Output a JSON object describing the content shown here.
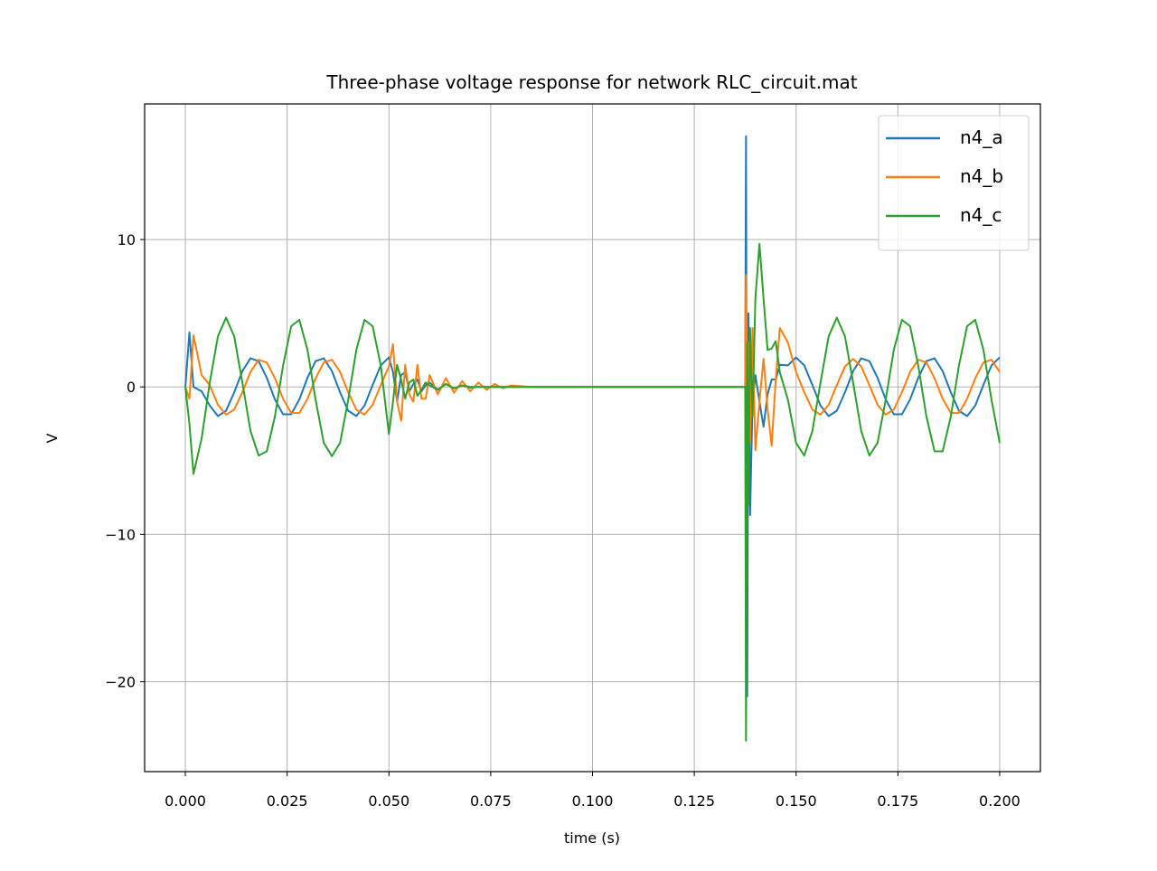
{
  "chart_data": {
    "type": "line",
    "title": "Three-phase voltage response for network RLC_circuit.mat",
    "xlabel": "time (s)",
    "ylabel": "V",
    "x": [
      0.0,
      0.001,
      0.002,
      0.004,
      0.006,
      0.008,
      0.01,
      0.012,
      0.014,
      0.016,
      0.018,
      0.02,
      0.022,
      0.024,
      0.026,
      0.028,
      0.03,
      0.032,
      0.034,
      0.036,
      0.038,
      0.04,
      0.042,
      0.044,
      0.046,
      0.048,
      0.05,
      0.051,
      0.052,
      0.053,
      0.054,
      0.055,
      0.056,
      0.057,
      0.058,
      0.059,
      0.06,
      0.062,
      0.064,
      0.066,
      0.068,
      0.07,
      0.072,
      0.074,
      0.076,
      0.078,
      0.08,
      0.085,
      0.1375,
      0.1377,
      0.138,
      0.1383,
      0.1387,
      0.1393,
      0.14,
      0.141,
      0.142,
      0.143,
      0.144,
      0.145,
      0.146,
      0.148,
      0.15,
      0.152,
      0.154,
      0.156,
      0.158,
      0.16,
      0.162,
      0.164,
      0.166,
      0.168,
      0.17,
      0.172,
      0.174,
      0.176,
      0.178,
      0.18,
      0.182,
      0.184,
      0.186,
      0.188,
      0.19,
      0.192,
      0.194,
      0.196,
      0.198,
      0.2
    ],
    "series": [
      {
        "name": "n4_a",
        "color": "#1f77b4",
        "values": [
          0,
          3.7,
          0.0,
          -0.3,
          -1.27,
          -1.98,
          -1.62,
          -0.37,
          1.07,
          1.94,
          1.75,
          0.62,
          -0.85,
          -1.86,
          -1.86,
          -0.85,
          0.62,
          1.75,
          1.94,
          1.07,
          -0.37,
          -1.62,
          -1.98,
          -1.27,
          0.13,
          1.46,
          2.0,
          1.0,
          -1.0,
          0.8,
          1.0,
          -0.3,
          0.2,
          0.5,
          -0.3,
          0.1,
          0.3,
          -0.2,
          0.2,
          -0.1,
          0.1,
          -0.05,
          0,
          0,
          0,
          0,
          0,
          0,
          0,
          17,
          -21,
          5,
          -8.7,
          -1,
          0.8,
          -1,
          -2.7,
          -0.5,
          0.5,
          0.5,
          1.5,
          1.46,
          2.0,
          1.46,
          0.13,
          -1.27,
          -1.98,
          -1.62,
          -0.37,
          1.07,
          1.94,
          1.75,
          0.62,
          -0.85,
          -1.86,
          -1.86,
          -0.85,
          0.62,
          1.75,
          1.94,
          1.07,
          -0.37,
          -1.62,
          -1.98,
          -1.27,
          0.13,
          1.46,
          2.0
        ]
      },
      {
        "name": "n4_b",
        "color": "#ff7f0e",
        "values": [
          0,
          -0.8,
          3.5,
          0.8,
          0.12,
          -1.21,
          -1.88,
          -1.54,
          -0.36,
          1.02,
          1.84,
          1.66,
          0.59,
          -0.81,
          -1.77,
          -1.77,
          -0.81,
          0.59,
          1.66,
          1.84,
          1.02,
          -0.36,
          -1.54,
          -1.88,
          -1.21,
          0.12,
          1.39,
          2.9,
          -1.0,
          -2.3,
          1.5,
          -0.5,
          -1.0,
          1.5,
          -0.8,
          -0.8,
          0.8,
          -0.5,
          0.6,
          -0.4,
          0.4,
          -0.3,
          0.3,
          -0.2,
          0.2,
          -0.1,
          0.1,
          0,
          0,
          7.6,
          -5,
          3,
          -3.7,
          4,
          -4.3,
          -1,
          1.9,
          -1.5,
          -4.0,
          0.5,
          4.0,
          3.0,
          1.02,
          -0.36,
          -1.54,
          -1.88,
          -1.21,
          0.12,
          1.39,
          1.9,
          1.39,
          0.12,
          -1.21,
          -1.88,
          -1.54,
          -0.36,
          1.02,
          1.84,
          1.66,
          0.59,
          -0.81,
          -1.77,
          -1.77,
          -0.81,
          0.59,
          1.66,
          1.84,
          1.02
        ]
      },
      {
        "name": "n4_c",
        "color": "#2ca02c",
        "values": [
          0,
          -2.5,
          -5.9,
          -3.5,
          0.3,
          3.43,
          4.7,
          3.43,
          0.3,
          -2.99,
          -4.66,
          -4.37,
          -2.0,
          1.45,
          4.12,
          4.55,
          2.52,
          -0.88,
          -3.8,
          -4.7,
          -3.8,
          -0.88,
          2.52,
          4.55,
          4.12,
          1.45,
          -3.2,
          -1.0,
          1.5,
          0.5,
          -0.8,
          0.3,
          0.5,
          -0.6,
          -0.2,
          0.3,
          0.1,
          -0.2,
          0.2,
          -0.1,
          0.1,
          0,
          0,
          0,
          0,
          0,
          0,
          0,
          0,
          -24,
          3,
          -8,
          4,
          -2,
          6,
          9.7,
          6,
          2.5,
          2.6,
          3.1,
          1.0,
          -0.88,
          -3.8,
          -4.66,
          -2.99,
          0.3,
          3.43,
          4.7,
          3.43,
          0.3,
          -2.99,
          -4.66,
          -3.8,
          -0.88,
          2.52,
          4.55,
          4.12,
          1.45,
          -2.0,
          -4.37,
          -4.37,
          -2.0,
          1.45,
          4.12,
          4.55,
          2.52,
          -0.88,
          -3.8
        ]
      }
    ],
    "xlim": [
      -0.01,
      0.21
    ],
    "ylim": [
      -26.1,
      19.2
    ],
    "xticks": [
      {
        "value": 0,
        "label": "0.000"
      },
      {
        "value": 0.025,
        "label": "0.025"
      },
      {
        "value": 0.05,
        "label": "0.050"
      },
      {
        "value": 0.075,
        "label": "0.075"
      },
      {
        "value": 0.1,
        "label": "0.100"
      },
      {
        "value": 0.125,
        "label": "0.125"
      },
      {
        "value": 0.15,
        "label": "0.150"
      },
      {
        "value": 0.175,
        "label": "0.175"
      },
      {
        "value": 0.2,
        "label": "0.200"
      }
    ],
    "yticks": [
      {
        "value": -20,
        "label": "−20"
      },
      {
        "value": -10,
        "label": "−10"
      },
      0,
      10
    ],
    "grid": true,
    "legend": "upper right"
  }
}
